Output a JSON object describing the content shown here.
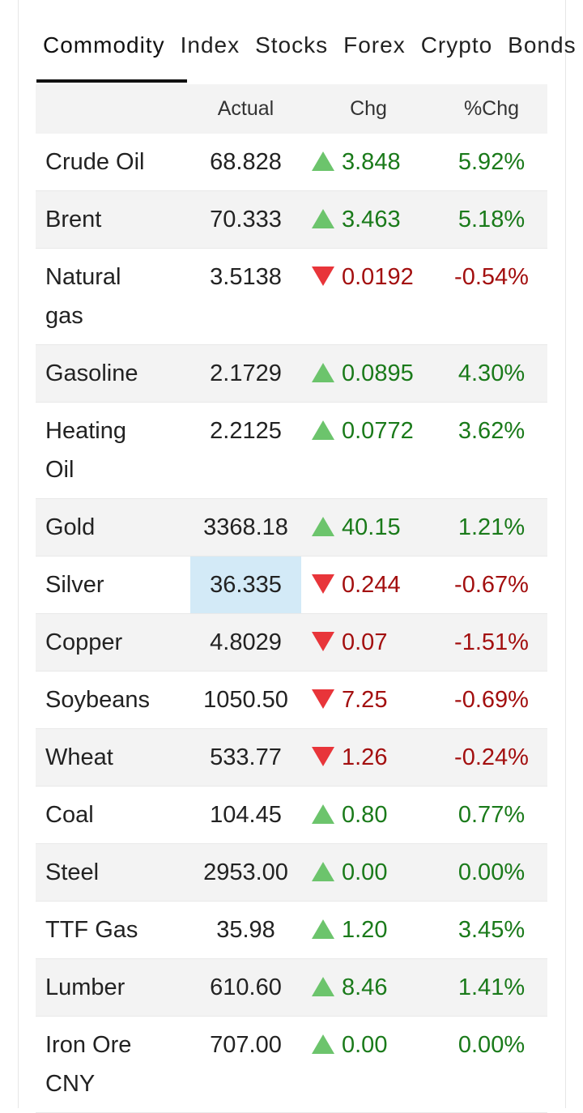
{
  "tabs": [
    {
      "label": "Commodity",
      "selected": true
    },
    {
      "label": "Index"
    },
    {
      "label": "Stocks"
    },
    {
      "label": "Forex"
    },
    {
      "label": "Crypto"
    },
    {
      "label": "Bonds"
    }
  ],
  "table": {
    "columns": [
      "Actual",
      "Chg",
      "%Chg"
    ],
    "rows": [
      {
        "name": "Crude Oil",
        "actual": "68.828",
        "change": "3.848",
        "percent": "5.92%",
        "direction": "up"
      },
      {
        "name": "Brent",
        "actual": "70.333",
        "change": "3.463",
        "percent": "5.18%",
        "direction": "up"
      },
      {
        "name": "Natural gas",
        "actual": "3.5138",
        "change": "0.0192",
        "percent": "-0.54%",
        "direction": "down"
      },
      {
        "name": "Gasoline",
        "actual": "2.1729",
        "change": "0.0895",
        "percent": "4.30%",
        "direction": "up"
      },
      {
        "name": "Heating Oil",
        "actual": "2.2125",
        "change": "0.0772",
        "percent": "3.62%",
        "direction": "up"
      },
      {
        "name": "Gold",
        "actual": "3368.18",
        "change": "40.15",
        "percent": "1.21%",
        "direction": "up"
      },
      {
        "name": "Silver",
        "actual": "36.335",
        "change": "0.244",
        "percent": "-0.67%",
        "direction": "down",
        "highlighted": true
      },
      {
        "name": "Copper",
        "actual": "4.8029",
        "change": "0.07",
        "percent": "-1.51%",
        "direction": "down"
      },
      {
        "name": "Soybeans",
        "actual": "1050.50",
        "change": "7.25",
        "percent": "-0.69%",
        "direction": "down"
      },
      {
        "name": "Wheat",
        "actual": "533.77",
        "change": "1.26",
        "percent": "-0.24%",
        "direction": "down"
      },
      {
        "name": "Coal",
        "actual": "104.45",
        "change": "0.80",
        "percent": "0.77%",
        "direction": "up"
      },
      {
        "name": "Steel",
        "actual": "2953.00",
        "change": "0.00",
        "percent": "0.00%",
        "direction": "up"
      },
      {
        "name": "TTF Gas",
        "actual": "35.98",
        "change": "1.20",
        "percent": "3.45%",
        "direction": "up"
      },
      {
        "name": "Lumber",
        "actual": "610.60",
        "change": "8.46",
        "percent": "1.41%",
        "direction": "up"
      },
      {
        "name": "Iron Ore CNY",
        "actual": "707.00",
        "change": "0.00",
        "percent": "0.00%",
        "direction": "up"
      }
    ]
  }
}
